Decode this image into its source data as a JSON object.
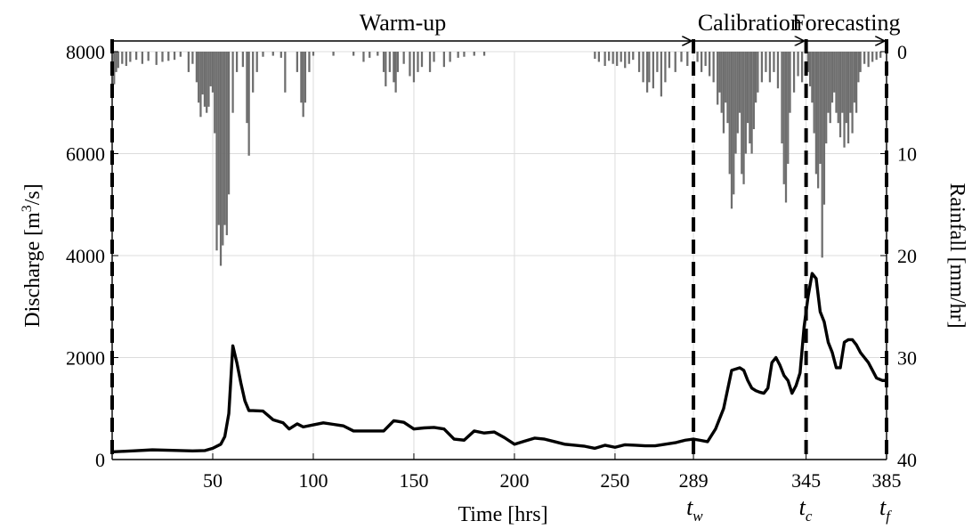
{
  "chart_data": {
    "type": "line",
    "xlabel": "Time [hrs]",
    "ylabel_left": {
      "text": "Discharge [m",
      "sup": "3",
      "after": "/s]"
    },
    "ylabel_right": "Rainfall [mm/hr]",
    "xlim": [
      0,
      385
    ],
    "ylim_left": [
      0,
      8000
    ],
    "ylim_right": [
      0,
      40
    ],
    "right_axis_inverted": true,
    "grid": true,
    "x_ticks": [
      50,
      100,
      150,
      200,
      250,
      289,
      345,
      385
    ],
    "x_tick_labels": [
      "50",
      "100",
      "150",
      "200",
      "250",
      "289",
      "345",
      "385"
    ],
    "y_ticks_left": [
      0,
      2000,
      4000,
      6000,
      8000
    ],
    "y_tick_labels_left": [
      "0",
      "2000",
      "4000",
      "6000",
      "8000"
    ],
    "y_ticks_right": [
      0,
      10,
      20,
      30,
      40
    ],
    "y_tick_labels_right": [
      "0",
      "10",
      "20",
      "30",
      "40"
    ],
    "phases": [
      {
        "label": "Warm-up",
        "start": 0,
        "end": 289
      },
      {
        "label": "Calibration",
        "start": 289,
        "end": 345
      },
      {
        "label": "Forecasting",
        "start": 345,
        "end": 385
      }
    ],
    "markers": [
      {
        "x": 289,
        "label": "t",
        "sub": "w"
      },
      {
        "x": 345,
        "label": "t",
        "sub": "c"
      },
      {
        "x": 385,
        "label": "t",
        "sub": "f"
      }
    ],
    "series": [
      {
        "kind": "line",
        "axis": "left",
        "color": "#000000",
        "x": [
          0,
          10,
          20,
          30,
          40,
          46,
          50,
          54,
          56,
          58,
          60,
          62,
          64,
          66,
          68,
          70,
          75,
          80,
          85,
          88,
          92,
          95,
          100,
          105,
          110,
          115,
          120,
          125,
          130,
          135,
          140,
          145,
          150,
          155,
          160,
          165,
          170,
          175,
          180,
          185,
          190,
          195,
          200,
          205,
          210,
          215,
          220,
          225,
          230,
          235,
          240,
          245,
          250,
          255,
          260,
          265,
          270,
          275,
          280,
          285,
          289,
          292,
          296,
          300,
          304,
          308,
          312,
          314,
          316,
          318,
          320,
          322,
          324,
          326,
          328,
          330,
          332,
          334,
          336,
          338,
          340,
          342,
          344,
          346,
          348,
          350,
          352,
          354,
          356,
          358,
          360,
          362,
          364,
          366,
          368,
          370,
          372,
          374,
          376,
          378,
          380,
          383,
          385
        ],
        "y": [
          150,
          170,
          190,
          180,
          170,
          175,
          220,
          300,
          450,
          900,
          2230,
          1900,
          1500,
          1150,
          960,
          960,
          950,
          780,
          720,
          600,
          700,
          640,
          680,
          720,
          690,
          660,
          560,
          560,
          560,
          560,
          760,
          730,
          600,
          620,
          630,
          600,
          400,
          380,
          560,
          520,
          540,
          430,
          300,
          360,
          420,
          400,
          350,
          300,
          280,
          260,
          220,
          280,
          240,
          290,
          280,
          270,
          270,
          300,
          330,
          380,
          400,
          380,
          350,
          600,
          1000,
          1750,
          1800,
          1750,
          1550,
          1400,
          1350,
          1320,
          1300,
          1400,
          1900,
          2000,
          1850,
          1650,
          1550,
          1300,
          1450,
          1700,
          2600,
          3200,
          3650,
          3550,
          2900,
          2700,
          2300,
          2100,
          1800,
          1800,
          2300,
          2350,
          2350,
          2250,
          2100,
          2000,
          1900,
          1750,
          1600,
          1550,
          1550
        ]
      },
      {
        "kind": "bar",
        "axis": "right",
        "color": "#6e6e6e",
        "bar_width": 1,
        "events": [
          {
            "x": 1,
            "y": 3.2
          },
          {
            "x": 2,
            "y": 2
          },
          {
            "x": 3,
            "y": 1.6
          },
          {
            "x": 5,
            "y": 1.2
          },
          {
            "x": 7,
            "y": 1.4
          },
          {
            "x": 9,
            "y": 1.0
          },
          {
            "x": 12,
            "y": 0.8
          },
          {
            "x": 15,
            "y": 1.2
          },
          {
            "x": 18,
            "y": 0.9
          },
          {
            "x": 22,
            "y": 1.3
          },
          {
            "x": 25,
            "y": 1.0
          },
          {
            "x": 28,
            "y": 0.9
          },
          {
            "x": 31,
            "y": 0.8
          },
          {
            "x": 34,
            "y": 0.5
          },
          {
            "x": 38,
            "y": 2.0
          },
          {
            "x": 40,
            "y": 1.2
          },
          {
            "x": 42,
            "y": 3.0
          },
          {
            "x": 43,
            "y": 5.0
          },
          {
            "x": 44,
            "y": 6.4
          },
          {
            "x": 45,
            "y": 4.2
          },
          {
            "x": 46,
            "y": 5.4
          },
          {
            "x": 47,
            "y": 6.0
          },
          {
            "x": 48,
            "y": 5.4
          },
          {
            "x": 49,
            "y": 3.4
          },
          {
            "x": 50,
            "y": 4.0
          },
          {
            "x": 51,
            "y": 8.0
          },
          {
            "x": 52,
            "y": 19.5
          },
          {
            "x": 53,
            "y": 17.0
          },
          {
            "x": 54,
            "y": 21.0
          },
          {
            "x": 55,
            "y": 19.0
          },
          {
            "x": 56,
            "y": 17.0
          },
          {
            "x": 57,
            "y": 18.0
          },
          {
            "x": 58,
            "y": 14.0
          },
          {
            "x": 60,
            "y": 6.0
          },
          {
            "x": 62,
            "y": 2.0
          },
          {
            "x": 65,
            "y": 1.5
          },
          {
            "x": 67,
            "y": 7.0
          },
          {
            "x": 68,
            "y": 10.2
          },
          {
            "x": 70,
            "y": 4.0
          },
          {
            "x": 72,
            "y": 2.0
          },
          {
            "x": 75,
            "y": 0.5
          },
          {
            "x": 80,
            "y": 0.4
          },
          {
            "x": 84,
            "y": 0.6
          },
          {
            "x": 86,
            "y": 4.0
          },
          {
            "x": 92,
            "y": 2.0
          },
          {
            "x": 94,
            "y": 5.0
          },
          {
            "x": 95,
            "y": 6.4
          },
          {
            "x": 96,
            "y": 5.0
          },
          {
            "x": 98,
            "y": 2.0
          },
          {
            "x": 100,
            "y": 0.4
          },
          {
            "x": 110,
            "y": 0.4
          },
          {
            "x": 120,
            "y": 0.4
          },
          {
            "x": 125,
            "y": 1.0
          },
          {
            "x": 128,
            "y": 0.6
          },
          {
            "x": 132,
            "y": 0.4
          },
          {
            "x": 135,
            "y": 2.0
          },
          {
            "x": 136,
            "y": 3.4
          },
          {
            "x": 138,
            "y": 2.0
          },
          {
            "x": 140,
            "y": 3.0
          },
          {
            "x": 141,
            "y": 4.0
          },
          {
            "x": 142,
            "y": 2.0
          },
          {
            "x": 145,
            "y": 1.2
          },
          {
            "x": 148,
            "y": 2.4
          },
          {
            "x": 150,
            "y": 3.0
          },
          {
            "x": 152,
            "y": 2.0
          },
          {
            "x": 154,
            "y": 1.5
          },
          {
            "x": 158,
            "y": 2.0
          },
          {
            "x": 160,
            "y": 1.0
          },
          {
            "x": 165,
            "y": 1.5
          },
          {
            "x": 168,
            "y": 1.0
          },
          {
            "x": 172,
            "y": 0.6
          },
          {
            "x": 175,
            "y": 0.5
          },
          {
            "x": 180,
            "y": 0.4
          },
          {
            "x": 185,
            "y": 0.4
          },
          {
            "x": 240,
            "y": 0.7
          },
          {
            "x": 242,
            "y": 1.0
          },
          {
            "x": 245,
            "y": 1.4
          },
          {
            "x": 247,
            "y": 0.9
          },
          {
            "x": 249,
            "y": 1.2
          },
          {
            "x": 251,
            "y": 1.4
          },
          {
            "x": 253,
            "y": 1.0
          },
          {
            "x": 255,
            "y": 1.6
          },
          {
            "x": 257,
            "y": 1.2
          },
          {
            "x": 259,
            "y": 0.8
          },
          {
            "x": 262,
            "y": 2.0
          },
          {
            "x": 264,
            "y": 3.0
          },
          {
            "x": 266,
            "y": 4.0
          },
          {
            "x": 267,
            "y": 3.0
          },
          {
            "x": 269,
            "y": 3.6
          },
          {
            "x": 271,
            "y": 2.0
          },
          {
            "x": 273,
            "y": 4.4
          },
          {
            "x": 275,
            "y": 3.0
          },
          {
            "x": 277,
            "y": 1.6
          },
          {
            "x": 280,
            "y": 2.0
          },
          {
            "x": 283,
            "y": 1.0
          },
          {
            "x": 286,
            "y": 1.4
          },
          {
            "x": 291,
            "y": 1.0
          },
          {
            "x": 293,
            "y": 2.0
          },
          {
            "x": 295,
            "y": 1.4
          },
          {
            "x": 297,
            "y": 2.4
          },
          {
            "x": 299,
            "y": 3.0
          },
          {
            "x": 301,
            "y": 5.2
          },
          {
            "x": 302,
            "y": 4.0
          },
          {
            "x": 303,
            "y": 6.0
          },
          {
            "x": 304,
            "y": 8.0
          },
          {
            "x": 305,
            "y": 5.0
          },
          {
            "x": 306,
            "y": 7.0
          },
          {
            "x": 307,
            "y": 12.0
          },
          {
            "x": 308,
            "y": 15.4
          },
          {
            "x": 309,
            "y": 14.0
          },
          {
            "x": 310,
            "y": 10.0
          },
          {
            "x": 311,
            "y": 8.0
          },
          {
            "x": 312,
            "y": 6.0
          },
          {
            "x": 313,
            "y": 12.0
          },
          {
            "x": 314,
            "y": 13.0
          },
          {
            "x": 315,
            "y": 10.0
          },
          {
            "x": 316,
            "y": 7.0
          },
          {
            "x": 317,
            "y": 9.0
          },
          {
            "x": 318,
            "y": 10.0
          },
          {
            "x": 319,
            "y": 7.6
          },
          {
            "x": 320,
            "y": 5.0
          },
          {
            "x": 321,
            "y": 4.0
          },
          {
            "x": 323,
            "y": 3.0
          },
          {
            "x": 325,
            "y": 2.0
          },
          {
            "x": 327,
            "y": 3.0
          },
          {
            "x": 329,
            "y": 2.0
          },
          {
            "x": 331,
            "y": 3.6
          },
          {
            "x": 333,
            "y": 9.0
          },
          {
            "x": 334,
            "y": 13.0
          },
          {
            "x": 335,
            "y": 14.8
          },
          {
            "x": 336,
            "y": 11.0
          },
          {
            "x": 337,
            "y": 6.0
          },
          {
            "x": 339,
            "y": 4.0
          },
          {
            "x": 341,
            "y": 2.4
          },
          {
            "x": 343,
            "y": 3.0
          },
          {
            "x": 346,
            "y": 2.0
          },
          {
            "x": 347,
            "y": 3.4
          },
          {
            "x": 348,
            "y": 5.0
          },
          {
            "x": 349,
            "y": 8.0
          },
          {
            "x": 350,
            "y": 12.0
          },
          {
            "x": 351,
            "y": 13.4
          },
          {
            "x": 352,
            "y": 11.0
          },
          {
            "x": 353,
            "y": 20.2
          },
          {
            "x": 354,
            "y": 15.0
          },
          {
            "x": 355,
            "y": 9.0
          },
          {
            "x": 356,
            "y": 6.0
          },
          {
            "x": 357,
            "y": 7.0
          },
          {
            "x": 358,
            "y": 5.0
          },
          {
            "x": 359,
            "y": 4.0
          },
          {
            "x": 360,
            "y": 6.0
          },
          {
            "x": 361,
            "y": 7.0
          },
          {
            "x": 362,
            "y": 8.4
          },
          {
            "x": 363,
            "y": 6.0
          },
          {
            "x": 364,
            "y": 9.4
          },
          {
            "x": 365,
            "y": 7.0
          },
          {
            "x": 366,
            "y": 9.0
          },
          {
            "x": 367,
            "y": 6.0
          },
          {
            "x": 368,
            "y": 8.0
          },
          {
            "x": 369,
            "y": 5.0
          },
          {
            "x": 370,
            "y": 6.0
          },
          {
            "x": 371,
            "y": 3.0
          },
          {
            "x": 372,
            "y": 2.0
          },
          {
            "x": 374,
            "y": 1.2
          },
          {
            "x": 376,
            "y": 1.5
          },
          {
            "x": 378,
            "y": 1.0
          },
          {
            "x": 380,
            "y": 0.8
          },
          {
            "x": 382,
            "y": 0.6
          }
        ]
      }
    ]
  }
}
